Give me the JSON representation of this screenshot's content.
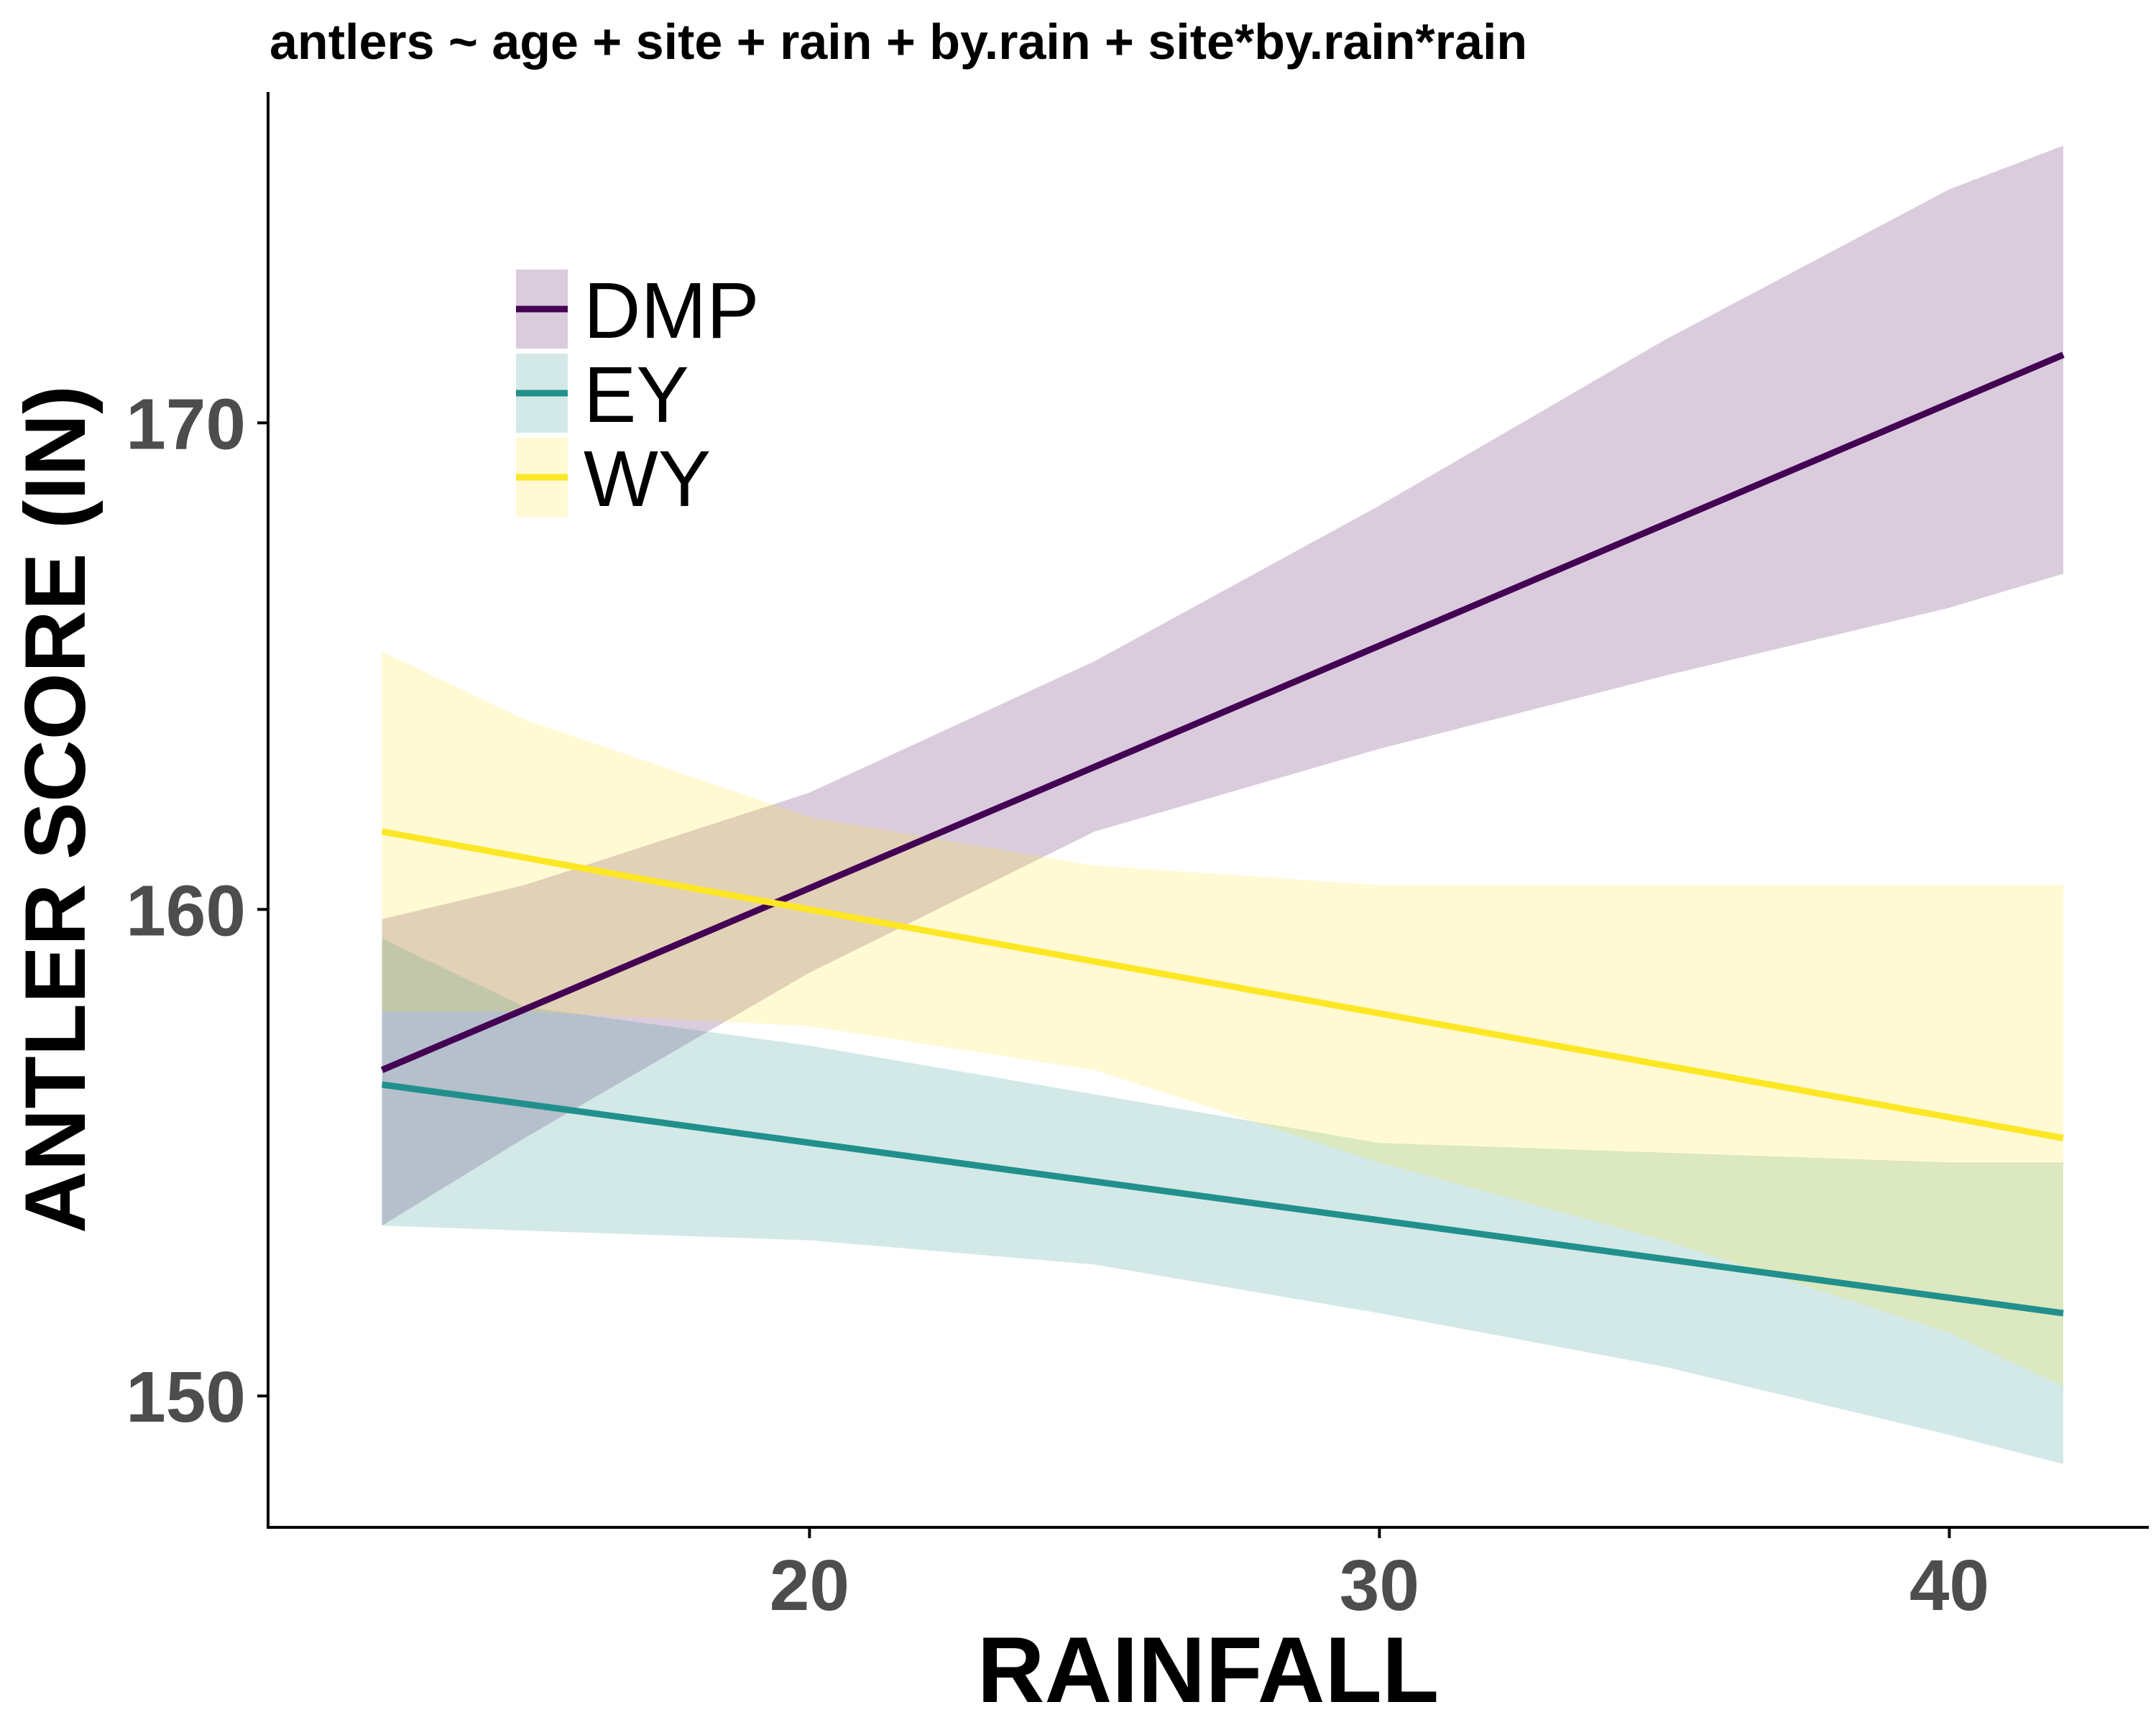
{
  "chart_data": {
    "type": "line",
    "title": "antlers ~ age + site + rain + by.rain + site*by.rain*rain",
    "xlabel": "RAINFALL",
    "ylabel": "ANTLER SCORE (IN)",
    "xlim": [
      10.5,
      43.5
    ],
    "ylim": [
      147.3,
      176.8
    ],
    "x_ticks": [
      20,
      30,
      40
    ],
    "y_ticks": [
      150,
      160,
      170
    ],
    "grid": false,
    "legend_position": "top-left",
    "series": [
      {
        "name": "DMP",
        "color": "#440154",
        "fill": "#d9cadd",
        "x": [
          12.5,
          42
        ],
        "y": [
          156.7,
          171.4
        ],
        "ribbon_x": [
          12.5,
          15,
          20,
          25,
          30,
          35,
          40,
          42
        ],
        "ribbon_lower": [
          153.5,
          155.3,
          158.7,
          161.6,
          163.3,
          164.8,
          166.2,
          166.9
        ],
        "ribbon_upper": [
          159.8,
          160.5,
          162.4,
          165.1,
          168.3,
          171.7,
          174.8,
          175.7
        ]
      },
      {
        "name": "EY",
        "color": "#21908c",
        "fill": "#d2e8e8",
        "x": [
          12.5,
          42
        ],
        "y": [
          156.4,
          151.7
        ],
        "ribbon_x": [
          12.5,
          15,
          20,
          25,
          30,
          35,
          40,
          42
        ],
        "ribbon_lower": [
          153.5,
          153.4,
          153.2,
          152.7,
          151.7,
          150.6,
          149.2,
          148.6
        ],
        "ribbon_upper": [
          159.4,
          158.0,
          157.2,
          156.2,
          155.2,
          155.0,
          154.8,
          154.8
        ]
      },
      {
        "name": "WY",
        "color": "#fde725",
        "fill": "#fff9d3",
        "x": [
          12.5,
          42
        ],
        "y": [
          161.6,
          155.3
        ],
        "ribbon_x": [
          12.5,
          15,
          20,
          25,
          30,
          35,
          40,
          42
        ],
        "ribbon_lower": [
          157.9,
          157.9,
          157.6,
          156.7,
          154.8,
          153.2,
          151.3,
          150.2
        ],
        "ribbon_upper": [
          165.3,
          163.9,
          161.9,
          160.9,
          160.5,
          160.5,
          160.5,
          160.5
        ]
      }
    ]
  }
}
